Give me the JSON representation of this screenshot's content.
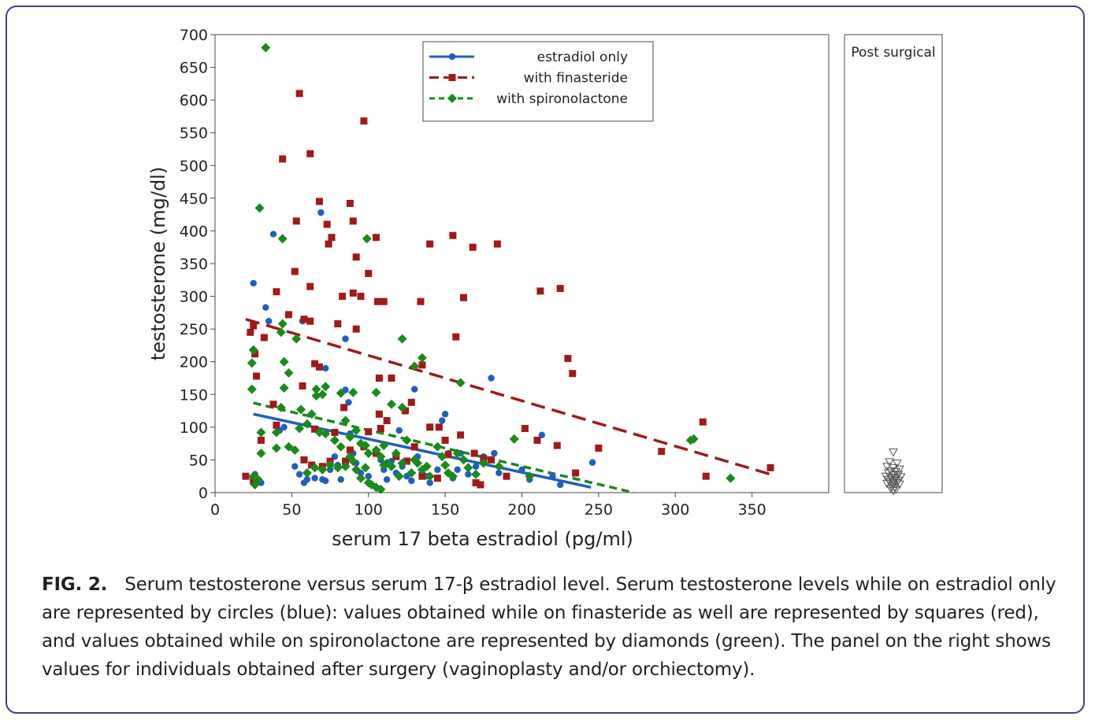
{
  "chart_data": {
    "type": "scatter",
    "xlabel": "serum 17 beta estradiol (pg/ml)",
    "ylabel": "testosterone (mg/dl)",
    "xlim": [
      0,
      400
    ],
    "ylim": [
      0,
      700
    ],
    "xticks": [
      0,
      50,
      100,
      150,
      200,
      250,
      300,
      350
    ],
    "yticks": [
      0,
      50,
      100,
      150,
      200,
      250,
      300,
      350,
      400,
      450,
      500,
      550,
      600,
      650,
      700
    ],
    "legend_position": "top-right",
    "side_panel_label": "Post surgical",
    "series": [
      {
        "name": "estradiol only",
        "color": "#1f5fbf",
        "marker": "circle",
        "line_style": "solid",
        "fit": [
          [
            25,
            120
          ],
          [
            245,
            8
          ]
        ],
        "points": [
          [
            25,
            320
          ],
          [
            33,
            283
          ],
          [
            35,
            262
          ],
          [
            38,
            395
          ],
          [
            57,
            262
          ],
          [
            69,
            428
          ],
          [
            72,
            190
          ],
          [
            85,
            235
          ],
          [
            85,
            157
          ],
          [
            87,
            138
          ],
          [
            42,
            95
          ],
          [
            45,
            100
          ],
          [
            52,
            40
          ],
          [
            55,
            28
          ],
          [
            58,
            15
          ],
          [
            60,
            20
          ],
          [
            65,
            22
          ],
          [
            70,
            20
          ],
          [
            72,
            18
          ],
          [
            75,
            35
          ],
          [
            78,
            55
          ],
          [
            80,
            42
          ],
          [
            82,
            20
          ],
          [
            88,
            90
          ],
          [
            90,
            60
          ],
          [
            92,
            45
          ],
          [
            95,
            30
          ],
          [
            100,
            25
          ],
          [
            105,
            65
          ],
          [
            108,
            50
          ],
          [
            110,
            35
          ],
          [
            112,
            20
          ],
          [
            115,
            48
          ],
          [
            118,
            30
          ],
          [
            120,
            95
          ],
          [
            122,
            40
          ],
          [
            125,
            25
          ],
          [
            128,
            18
          ],
          [
            130,
            158
          ],
          [
            132,
            55
          ],
          [
            135,
            30
          ],
          [
            138,
            25
          ],
          [
            140,
            15
          ],
          [
            145,
            35
          ],
          [
            148,
            110
          ],
          [
            150,
            120
          ],
          [
            152,
            60
          ],
          [
            155,
            22
          ],
          [
            158,
            35
          ],
          [
            160,
            60
          ],
          [
            165,
            28
          ],
          [
            170,
            40
          ],
          [
            175,
            55
          ],
          [
            180,
            175
          ],
          [
            182,
            60
          ],
          [
            185,
            30
          ],
          [
            190,
            25
          ],
          [
            200,
            35
          ],
          [
            205,
            20
          ],
          [
            213,
            88
          ],
          [
            220,
            25
          ],
          [
            225,
            12
          ],
          [
            246,
            46
          ],
          [
            26,
            28
          ],
          [
            28,
            20
          ],
          [
            30,
            15
          ]
        ]
      },
      {
        "name": "with finasteride",
        "color": "#a01a1a",
        "marker": "square",
        "line_style": "dashed",
        "fit": [
          [
            20,
            265
          ],
          [
            362,
            28
          ]
        ],
        "points": [
          [
            55,
            610
          ],
          [
            97,
            568
          ],
          [
            62,
            518
          ],
          [
            44,
            510
          ],
          [
            68,
            445
          ],
          [
            88,
            442
          ],
          [
            53,
            415
          ],
          [
            90,
            415
          ],
          [
            73,
            410
          ],
          [
            76,
            390
          ],
          [
            105,
            390
          ],
          [
            74,
            380
          ],
          [
            140,
            380
          ],
          [
            155,
            393
          ],
          [
            168,
            375
          ],
          [
            184,
            380
          ],
          [
            92,
            360
          ],
          [
            40,
            307
          ],
          [
            52,
            338
          ],
          [
            62,
            315
          ],
          [
            100,
            335
          ],
          [
            83,
            300
          ],
          [
            90,
            305
          ],
          [
            95,
            300
          ],
          [
            106,
            292
          ],
          [
            110,
            292
          ],
          [
            134,
            292
          ],
          [
            162,
            298
          ],
          [
            212,
            308
          ],
          [
            225,
            312
          ],
          [
            48,
            272
          ],
          [
            58,
            265
          ],
          [
            62,
            262
          ],
          [
            80,
            258
          ],
          [
            92,
            250
          ],
          [
            25,
            255
          ],
          [
            23,
            245
          ],
          [
            26,
            212
          ],
          [
            32,
            237
          ],
          [
            65,
            197
          ],
          [
            68,
            192
          ],
          [
            107,
            175
          ],
          [
            115,
            175
          ],
          [
            135,
            195
          ],
          [
            157,
            238
          ],
          [
            230,
            205
          ],
          [
            233,
            182
          ],
          [
            27,
            178
          ],
          [
            38,
            135
          ],
          [
            40,
            103
          ],
          [
            57,
            163
          ],
          [
            65,
            97
          ],
          [
            78,
            92
          ],
          [
            84,
            130
          ],
          [
            100,
            93
          ],
          [
            107,
            120
          ],
          [
            108,
            98
          ],
          [
            112,
            110
          ],
          [
            124,
            125
          ],
          [
            128,
            138
          ],
          [
            130,
            70
          ],
          [
            140,
            100
          ],
          [
            146,
            100
          ],
          [
            150,
            80
          ],
          [
            160,
            88
          ],
          [
            169,
            60
          ],
          [
            180,
            50
          ],
          [
            190,
            25
          ],
          [
            202,
            98
          ],
          [
            210,
            80
          ],
          [
            223,
            72
          ],
          [
            235,
            30
          ],
          [
            250,
            68
          ],
          [
            291,
            63
          ],
          [
            318,
            108
          ],
          [
            320,
            25
          ],
          [
            362,
            38
          ],
          [
            20,
            25
          ],
          [
            25,
            18
          ],
          [
            30,
            80
          ],
          [
            58,
            50
          ],
          [
            63,
            42
          ],
          [
            70,
            40
          ],
          [
            75,
            48
          ],
          [
            85,
            48
          ],
          [
            88,
            65
          ],
          [
            97,
            70
          ],
          [
            105,
            60
          ],
          [
            118,
            55
          ],
          [
            125,
            48
          ],
          [
            135,
            25
          ],
          [
            145,
            22
          ],
          [
            152,
            58
          ],
          [
            170,
            15
          ],
          [
            173,
            12
          ],
          [
            175,
            52
          ]
        ]
      },
      {
        "name": "with spironolactone",
        "color": "#1a8a1a",
        "marker": "diamond",
        "line_style": "dashed",
        "fit": [
          [
            25,
            137
          ],
          [
            273,
            0
          ]
        ],
        "points": [
          [
            33,
            680
          ],
          [
            29,
            435
          ],
          [
            44,
            388
          ],
          [
            99,
            388
          ],
          [
            44,
            258
          ],
          [
            53,
            235
          ],
          [
            25,
            218
          ],
          [
            24,
            198
          ],
          [
            43,
            245
          ],
          [
            45,
            200
          ],
          [
            48,
            183
          ],
          [
            45,
            160
          ],
          [
            24,
            158
          ],
          [
            122,
            235
          ],
          [
            130,
            193
          ],
          [
            135,
            206
          ],
          [
            160,
            168
          ],
          [
            43,
            130
          ],
          [
            56,
            127
          ],
          [
            63,
            120
          ],
          [
            66,
            148
          ],
          [
            66,
            158
          ],
          [
            70,
            150
          ],
          [
            72,
            162
          ],
          [
            82,
            152
          ],
          [
            85,
            110
          ],
          [
            90,
            153
          ],
          [
            105,
            153
          ],
          [
            115,
            135
          ],
          [
            122,
            130
          ],
          [
            60,
            105
          ],
          [
            55,
            98
          ],
          [
            30,
            92
          ],
          [
            40,
            92
          ],
          [
            48,
            70
          ],
          [
            52,
            65
          ],
          [
            30,
            60
          ],
          [
            40,
            68
          ],
          [
            68,
            92
          ],
          [
            72,
            90
          ],
          [
            78,
            80
          ],
          [
            82,
            70
          ],
          [
            88,
            85
          ],
          [
            92,
            95
          ],
          [
            95,
            75
          ],
          [
            98,
            72
          ],
          [
            100,
            60
          ],
          [
            105,
            65
          ],
          [
            108,
            55
          ],
          [
            110,
            72
          ],
          [
            112,
            45
          ],
          [
            115,
            40
          ],
          [
            118,
            60
          ],
          [
            120,
            25
          ],
          [
            122,
            45
          ],
          [
            125,
            80
          ],
          [
            128,
            30
          ],
          [
            130,
            50
          ],
          [
            132,
            45
          ],
          [
            135,
            35
          ],
          [
            138,
            40
          ],
          [
            140,
            25
          ],
          [
            145,
            70
          ],
          [
            148,
            55
          ],
          [
            150,
            42
          ],
          [
            152,
            30
          ],
          [
            155,
            25
          ],
          [
            158,
            60
          ],
          [
            162,
            50
          ],
          [
            165,
            38
          ],
          [
            170,
            28
          ],
          [
            175,
            45
          ],
          [
            185,
            40
          ],
          [
            195,
            82
          ],
          [
            205,
            25
          ],
          [
            310,
            80
          ],
          [
            312,
            82
          ],
          [
            336,
            22
          ],
          [
            25,
            25
          ],
          [
            26,
            12
          ],
          [
            28,
            20
          ],
          [
            60,
            30
          ],
          [
            65,
            38
          ],
          [
            70,
            35
          ],
          [
            75,
            42
          ],
          [
            80,
            38
          ],
          [
            85,
            40
          ],
          [
            88,
            55
          ],
          [
            90,
            48
          ],
          [
            92,
            35
          ],
          [
            95,
            22
          ],
          [
            98,
            38
          ],
          [
            100,
            15
          ],
          [
            102,
            12
          ],
          [
            105,
            8
          ],
          [
            108,
            5
          ],
          [
            110,
            42
          ]
        ]
      }
    ],
    "post_surgical_points": [
      [
        0,
        62
      ],
      [
        -3,
        47
      ],
      [
        3,
        45
      ],
      [
        -5,
        40
      ],
      [
        0,
        38
      ],
      [
        5,
        36
      ],
      [
        -2,
        33
      ],
      [
        2,
        32
      ],
      [
        -4,
        30
      ],
      [
        4,
        28
      ],
      [
        0,
        27
      ],
      [
        -6,
        25
      ],
      [
        6,
        24
      ],
      [
        -2,
        23
      ],
      [
        2,
        22
      ],
      [
        -4,
        20
      ],
      [
        4,
        19
      ],
      [
        0,
        18
      ],
      [
        -3,
        16
      ],
      [
        3,
        15
      ],
      [
        0,
        12
      ],
      [
        -5,
        14
      ],
      [
        5,
        13
      ],
      [
        -1,
        10
      ],
      [
        1,
        8
      ],
      [
        -2,
        6
      ],
      [
        2,
        5
      ],
      [
        0,
        3
      ]
    ]
  },
  "caption": {
    "label": "FIG. 2.",
    "text": "Serum testosterone versus serum 17-β estradiol level. Serum testosterone levels while on estradiol only are represented by circles (blue): values obtained while on finasteride as well are represented by squares (red), and values obtained while on spironolactone are represented by diamonds (green). The panel on the right shows values for individuals obtained after surgery (vaginoplasty and/or orchiectomy)."
  }
}
